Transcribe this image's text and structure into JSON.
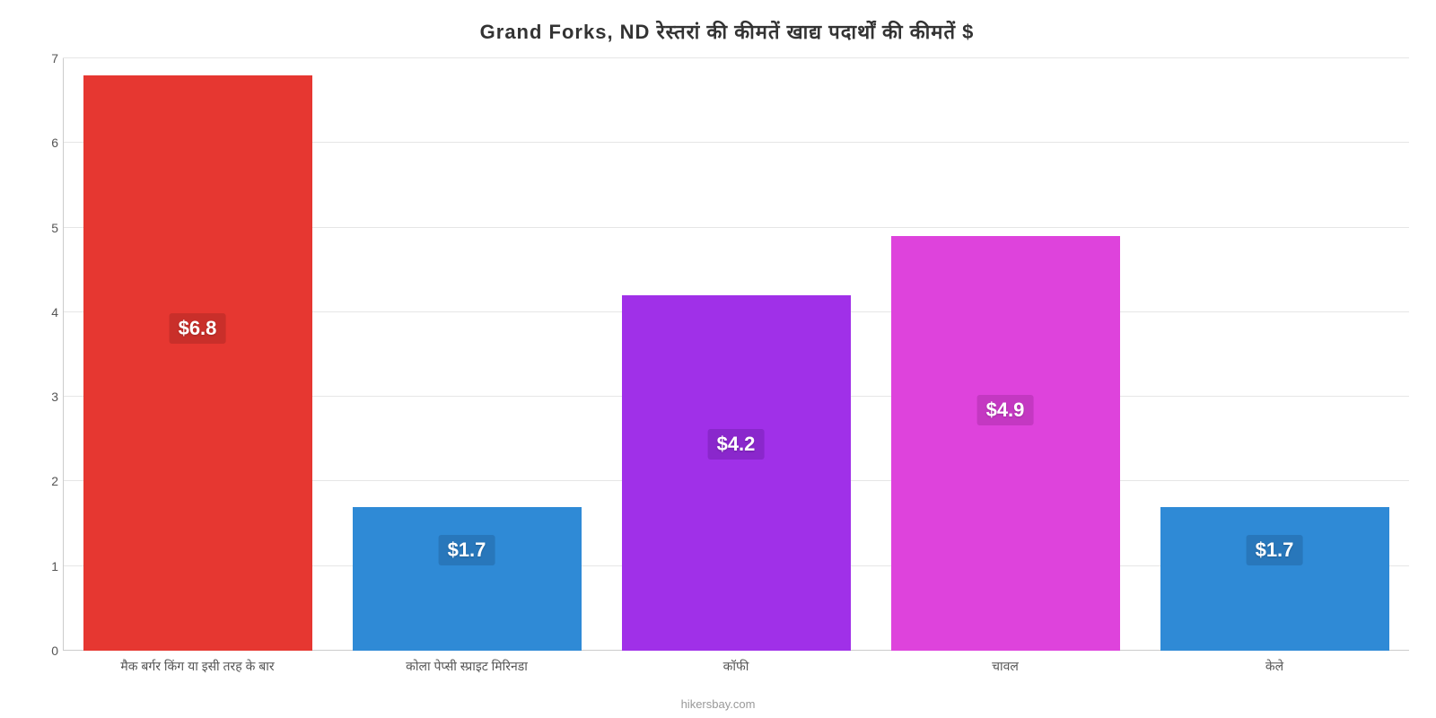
{
  "chart": {
    "type": "bar",
    "title_bold": "Grand Forks, ND",
    "title_rest": "रेस्तरां की कीमतें खाद्य पदार्थों की कीमतें $",
    "title_fontsize": 22,
    "background_color": "#ffffff",
    "grid_color": "#e6e6e6",
    "axis_color": "#cccccc",
    "tick_label_color": "#555555",
    "ylim_min": 0,
    "ylim_max": 7,
    "ytick_step": 1,
    "y_ticks": [
      "0",
      "1",
      "2",
      "3",
      "4",
      "5",
      "6",
      "7"
    ],
    "bar_width_ratio": 0.85,
    "categories": [
      "मैक बर्गर किंग या इसी तरह के बार",
      "कोला पेप्सी स्प्राइट मिरिनडा",
      "कॉफी",
      "चावल",
      "केले"
    ],
    "values": [
      6.8,
      1.7,
      4.2,
      4.9,
      1.7
    ],
    "value_labels": [
      "$6.8",
      "$1.7",
      "$4.2",
      "$4.9",
      "$1.7"
    ],
    "bar_colors": [
      "#e63731",
      "#2f8ad6",
      "#a030e8",
      "#de43dc",
      "#2f8ad6"
    ],
    "label_bg_colors": [
      "#c92f2a",
      "#2877bb",
      "#8a27cc",
      "#c438c2",
      "#2877bb"
    ],
    "label_position_ratio": [
      0.45,
      0.24,
      0.4,
      0.42,
      0.24
    ],
    "category_label_fontsize": 14,
    "value_label_fontsize": 22,
    "attribution": "hikersbay.com"
  }
}
